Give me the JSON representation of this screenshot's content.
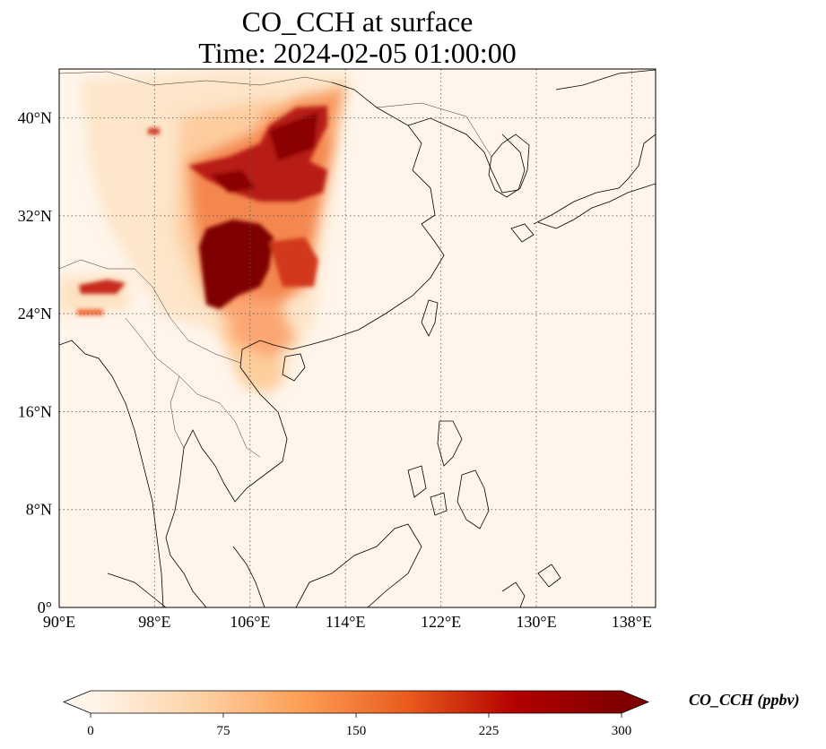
{
  "title": {
    "line1": "CO_CCH at surface",
    "line2": "Time: 2024-02-05 01:00:00"
  },
  "map": {
    "projection": "PlateCarree",
    "lon_range": [
      90,
      140
    ],
    "lat_range": [
      0,
      44
    ],
    "background_color": "#fff5eb",
    "gridlines": "dotted",
    "lon_ticks": [
      {
        "value": 90,
        "label": "90°E"
      },
      {
        "value": 98,
        "label": "98°E"
      },
      {
        "value": 106,
        "label": "106°E"
      },
      {
        "value": 114,
        "label": "114°E"
      },
      {
        "value": 122,
        "label": "122°E"
      },
      {
        "value": 130,
        "label": "130°E"
      },
      {
        "value": 138,
        "label": "138°E"
      }
    ],
    "lat_ticks": [
      {
        "value": 0,
        "label": "0°"
      },
      {
        "value": 8,
        "label": "8°N"
      },
      {
        "value": 16,
        "label": "16°N"
      },
      {
        "value": 24,
        "label": "24°N"
      },
      {
        "value": 32,
        "label": "32°N"
      },
      {
        "value": 40,
        "label": "40°N"
      }
    ]
  },
  "colorbar": {
    "label": "CO_CCH (ppbv)",
    "cmap": "OrRd",
    "extend": "both",
    "range": [
      0,
      300
    ],
    "ticks": [
      "0",
      "75",
      "150",
      "225",
      "300"
    ],
    "stops": [
      "#fff5eb",
      "#fdd3a7",
      "#fd9d55",
      "#e85a1c",
      "#b30000",
      "#7f0000"
    ]
  }
}
